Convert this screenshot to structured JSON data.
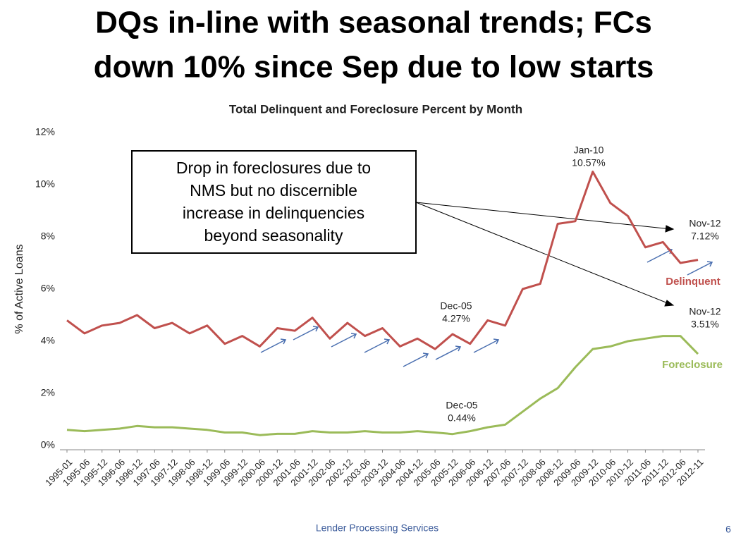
{
  "slide_title": [
    "DQs in-line with seasonal trends; FCs",
    "down 10% since Sep due to low starts"
  ],
  "chart_data": {
    "type": "line",
    "title": "Total Delinquent and Foreclosure Percent by Month",
    "y_label": "% of Active Loans",
    "categories": [
      "1995-01",
      "1995-06",
      "1995-12",
      "1996-06",
      "1996-12",
      "1997-06",
      "1997-12",
      "1998-06",
      "1998-12",
      "1999-06",
      "1999-12",
      "2000-06",
      "2000-12",
      "2001-06",
      "2001-12",
      "2002-06",
      "2002-12",
      "2003-06",
      "2003-12",
      "2004-06",
      "2004-12",
      "2005-06",
      "2005-12",
      "2006-06",
      "2006-12",
      "2007-06",
      "2007-12",
      "2008-06",
      "2008-12",
      "2009-06",
      "2009-12",
      "2010-06",
      "2010-12",
      "2011-06",
      "2011-12",
      "2012-06",
      "2012-11"
    ],
    "series": [
      {
        "name": "Delinquent",
        "color": "#c0504d",
        "values": [
          4.8,
          4.3,
          4.6,
          4.7,
          5.0,
          4.5,
          4.7,
          4.3,
          4.6,
          3.9,
          4.2,
          3.8,
          4.5,
          4.4,
          4.9,
          4.1,
          4.7,
          4.2,
          4.5,
          3.8,
          4.1,
          3.7,
          4.27,
          3.9,
          4.8,
          4.6,
          6.0,
          6.2,
          8.5,
          8.6,
          10.5,
          9.3,
          8.8,
          7.6,
          7.8,
          7.0,
          7.12
        ]
      },
      {
        "name": "Foreclosure",
        "color": "#9bbb59",
        "values": [
          0.6,
          0.55,
          0.6,
          0.65,
          0.75,
          0.7,
          0.7,
          0.65,
          0.6,
          0.5,
          0.5,
          0.4,
          0.45,
          0.45,
          0.55,
          0.5,
          0.5,
          0.55,
          0.5,
          0.5,
          0.55,
          0.5,
          0.44,
          0.55,
          0.7,
          0.8,
          1.3,
          1.8,
          2.2,
          3.0,
          3.7,
          3.8,
          4.0,
          4.1,
          4.2,
          4.2,
          3.51
        ]
      }
    ],
    "ylim": [
      0,
      12
    ],
    "yticks": [
      {
        "value": 0,
        "label": "0%"
      },
      {
        "value": 2,
        "label": "2%"
      },
      {
        "value": 4,
        "label": "4%"
      },
      {
        "value": 6,
        "label": "6%"
      },
      {
        "value": 8,
        "label": "8%"
      },
      {
        "value": 10,
        "label": "10%"
      },
      {
        "value": 12,
        "label": "12%"
      }
    ],
    "annotations": [
      {
        "date": "Jan-10",
        "label": "10.57%"
      },
      {
        "date": "Nov-12",
        "label": "7.12%"
      },
      {
        "date": "Nov-12",
        "label": "3.51%"
      },
      {
        "date": "Dec-05",
        "label": "4.27%"
      },
      {
        "date": "Dec-05",
        "label": "0.44%"
      }
    ],
    "callout": [
      "Drop in foreclosures due to",
      "NMS but no discernible",
      "increase in delinquencies",
      "beyond seasonality"
    ]
  },
  "footer": "Lender Processing Services",
  "page_number": "6"
}
